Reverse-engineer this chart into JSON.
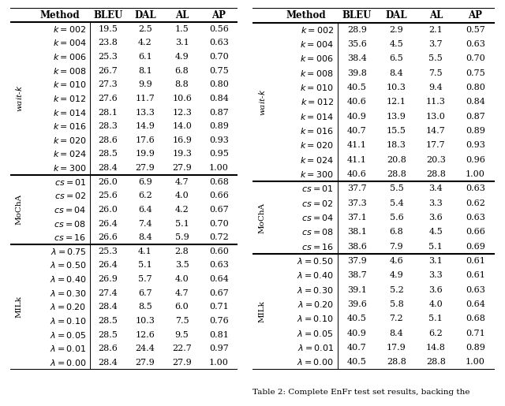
{
  "table1": {
    "wait_k_rows": [
      [
        "k = 002",
        "19.5",
        "2.5",
        "1.5",
        "0.56"
      ],
      [
        "k = 004",
        "23.8",
        "4.2",
        "3.1",
        "0.63"
      ],
      [
        "k = 006",
        "25.3",
        "6.1",
        "4.9",
        "0.70"
      ],
      [
        "k = 008",
        "26.7",
        "8.1",
        "6.8",
        "0.75"
      ],
      [
        "k = 010",
        "27.3",
        "9.9",
        "8.8",
        "0.80"
      ],
      [
        "k = 012",
        "27.6",
        "11.7",
        "10.6",
        "0.84"
      ],
      [
        "k = 014",
        "28.1",
        "13.3",
        "12.3",
        "0.87"
      ],
      [
        "k = 016",
        "28.3",
        "14.9",
        "14.0",
        "0.89"
      ],
      [
        "k = 020",
        "28.6",
        "17.6",
        "16.9",
        "0.93"
      ],
      [
        "k = 024",
        "28.5",
        "19.9",
        "19.3",
        "0.95"
      ],
      [
        "k = 300",
        "28.4",
        "27.9",
        "27.9",
        "1.00"
      ]
    ],
    "mocha_rows": [
      [
        "cs = 01",
        "26.0",
        "6.9",
        "4.7",
        "0.68"
      ],
      [
        "cs = 02",
        "25.6",
        "6.2",
        "4.0",
        "0.66"
      ],
      [
        "cs = 04",
        "26.0",
        "6.4",
        "4.2",
        "0.67"
      ],
      [
        "cs = 08",
        "26.4",
        "7.4",
        "5.1",
        "0.70"
      ],
      [
        "cs = 16",
        "26.6",
        "8.4",
        "5.9",
        "0.72"
      ]
    ],
    "milk_rows": [
      [
        "λ = 0.75",
        "25.3",
        "4.1",
        "2.8",
        "0.60"
      ],
      [
        "λ = 0.50",
        "26.4",
        "5.1",
        "3.5",
        "0.63"
      ],
      [
        "λ = 0.40",
        "26.9",
        "5.7",
        "4.0",
        "0.64"
      ],
      [
        "λ = 0.30",
        "27.4",
        "6.7",
        "4.7",
        "0.67"
      ],
      [
        "λ = 0.20",
        "28.4",
        "8.5",
        "6.0",
        "0.71"
      ],
      [
        "λ = 0.10",
        "28.5",
        "10.3",
        "7.5",
        "0.76"
      ],
      [
        "λ = 0.05",
        "28.5",
        "12.6",
        "9.5",
        "0.81"
      ],
      [
        "λ = 0.01",
        "28.6",
        "24.4",
        "22.7",
        "0.97"
      ],
      [
        "λ = 0.00",
        "28.4",
        "27.9",
        "27.9",
        "1.00"
      ]
    ]
  },
  "table2": {
    "wait_k_rows": [
      [
        "k = 002",
        "28.9",
        "2.9",
        "2.1",
        "0.57"
      ],
      [
        "k = 004",
        "35.6",
        "4.5",
        "3.7",
        "0.63"
      ],
      [
        "k = 006",
        "38.4",
        "6.5",
        "5.5",
        "0.70"
      ],
      [
        "k = 008",
        "39.8",
        "8.4",
        "7.5",
        "0.75"
      ],
      [
        "k = 010",
        "40.5",
        "10.3",
        "9.4",
        "0.80"
      ],
      [
        "k = 012",
        "40.6",
        "12.1",
        "11.3",
        "0.84"
      ],
      [
        "k = 014",
        "40.9",
        "13.9",
        "13.0",
        "0.87"
      ],
      [
        "k = 016",
        "40.7",
        "15.5",
        "14.7",
        "0.89"
      ],
      [
        "k = 020",
        "41.1",
        "18.3",
        "17.7",
        "0.93"
      ],
      [
        "k = 024",
        "41.1",
        "20.8",
        "20.3",
        "0.96"
      ],
      [
        "k = 300",
        "40.6",
        "28.8",
        "28.8",
        "1.00"
      ]
    ],
    "mocha_rows": [
      [
        "cs = 01",
        "37.7",
        "5.5",
        "3.4",
        "0.63"
      ],
      [
        "cs = 02",
        "37.3",
        "5.4",
        "3.3",
        "0.62"
      ],
      [
        "cs = 04",
        "37.1",
        "5.6",
        "3.6",
        "0.63"
      ],
      [
        "cs = 08",
        "38.1",
        "6.8",
        "4.5",
        "0.66"
      ],
      [
        "cs = 16",
        "38.6",
        "7.9",
        "5.1",
        "0.69"
      ]
    ],
    "milk_rows": [
      [
        "λ = 0.50",
        "37.9",
        "4.6",
        "3.1",
        "0.61"
      ],
      [
        "λ = 0.40",
        "38.7",
        "4.9",
        "3.3",
        "0.61"
      ],
      [
        "λ = 0.30",
        "39.1",
        "5.2",
        "3.6",
        "0.63"
      ],
      [
        "λ = 0.20",
        "39.6",
        "5.8",
        "4.0",
        "0.64"
      ],
      [
        "λ = 0.10",
        "40.5",
        "7.2",
        "5.1",
        "0.68"
      ],
      [
        "λ = 0.05",
        "40.9",
        "8.4",
        "6.2",
        "0.71"
      ],
      [
        "λ = 0.01",
        "40.7",
        "17.9",
        "14.8",
        "0.89"
      ],
      [
        "λ = 0.00",
        "40.5",
        "28.8",
        "28.8",
        "1.00"
      ]
    ]
  },
  "headers": [
    "Method",
    "BLEU",
    "DAL",
    "AL",
    "AP"
  ],
  "caption": "Table 2: Complete EnFr test set results, backing the",
  "thick_lw": 1.5,
  "thin_lw": 0.7,
  "header_fontsize": 8.5,
  "data_fontsize": 8.0,
  "label_fontsize": 7.5
}
